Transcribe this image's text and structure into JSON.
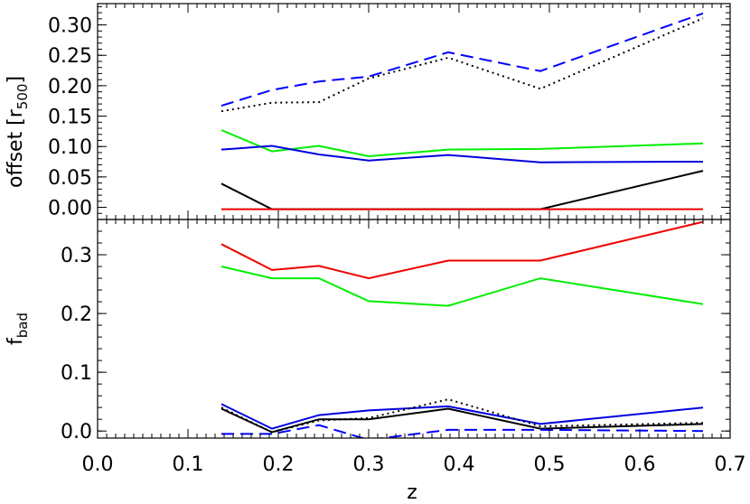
{
  "chart_data": [
    {
      "type": "line",
      "panel": "top",
      "ylabel": "offset [r500]",
      "ylabel_main": "offset [r",
      "ylabel_sub": "500",
      "ylabel_close": "]",
      "xlim": [
        0.0,
        0.7
      ],
      "ylim": [
        -0.02,
        0.335
      ],
      "yticks": [
        0.0,
        0.05,
        0.1,
        0.15,
        0.2,
        0.25,
        0.3
      ],
      "yticklabels": [
        "0.00",
        "0.05",
        "0.10",
        "0.15",
        "0.20",
        "0.25",
        "0.30"
      ],
      "grid": false,
      "series": [
        {
          "color": "#0000ff",
          "style": "dashed",
          "x": [
            0.137,
            0.193,
            0.245,
            0.3,
            0.388,
            0.49,
            0.67
          ],
          "values": [
            0.167,
            0.193,
            0.207,
            0.215,
            0.255,
            0.224,
            0.319
          ]
        },
        {
          "color": "#000000",
          "style": "dotted",
          "x": [
            0.137,
            0.193,
            0.245,
            0.3,
            0.388,
            0.49,
            0.67
          ],
          "values": [
            0.158,
            0.172,
            0.173,
            0.212,
            0.246,
            0.195,
            0.311
          ]
        },
        {
          "color": "#00ee00",
          "style": "solid",
          "x": [
            0.137,
            0.193,
            0.245,
            0.3,
            0.388,
            0.49,
            0.67
          ],
          "values": [
            0.127,
            0.092,
            0.101,
            0.084,
            0.095,
            0.096,
            0.105
          ]
        },
        {
          "color": "#0000dd",
          "style": "solid",
          "x": [
            0.137,
            0.193,
            0.245,
            0.3,
            0.388,
            0.49,
            0.67
          ],
          "values": [
            0.095,
            0.101,
            0.087,
            0.077,
            0.086,
            0.074,
            0.075
          ]
        },
        {
          "color": "#000000",
          "style": "solid",
          "x": [
            0.137,
            0.193,
            0.245,
            0.3,
            0.388,
            0.49,
            0.67
          ],
          "values": [
            0.039,
            -0.003,
            -0.003,
            -0.003,
            -0.003,
            -0.003,
            0.06
          ]
        },
        {
          "color": "#ee0000",
          "style": "solid",
          "x": [
            0.137,
            0.193,
            0.245,
            0.3,
            0.388,
            0.49,
            0.67
          ],
          "values": [
            -0.003,
            -0.003,
            -0.003,
            -0.003,
            -0.003,
            -0.003,
            -0.003
          ]
        }
      ]
    },
    {
      "type": "line",
      "panel": "bottom",
      "ylabel": "fbad",
      "ylabel_main": "f",
      "ylabel_sub": "bad",
      "xlabel": "z",
      "xlim": [
        0.0,
        0.7
      ],
      "ylim": [
        -0.012,
        0.36
      ],
      "xticks": [
        0.0,
        0.1,
        0.2,
        0.3,
        0.4,
        0.5,
        0.6,
        0.7
      ],
      "xticklabels": [
        "0.0",
        "0.1",
        "0.2",
        "0.3",
        "0.4",
        "0.5",
        "0.6",
        "0.7"
      ],
      "yticks": [
        0.0,
        0.1,
        0.2,
        0.3
      ],
      "yticklabels": [
        "0.0",
        "0.1",
        "0.2",
        "0.3"
      ],
      "grid": false,
      "series": [
        {
          "color": "#ee0000",
          "style": "solid",
          "x": [
            0.137,
            0.193,
            0.245,
            0.3,
            0.388,
            0.49,
            0.67
          ],
          "values": [
            0.318,
            0.274,
            0.281,
            0.26,
            0.29,
            0.29,
            0.356
          ]
        },
        {
          "color": "#00ee00",
          "style": "solid",
          "x": [
            0.137,
            0.193,
            0.245,
            0.3,
            0.388,
            0.49,
            0.67
          ],
          "values": [
            0.28,
            0.26,
            0.26,
            0.221,
            0.213,
            0.26,
            0.216
          ]
        },
        {
          "color": "#0000dd",
          "style": "solid",
          "x": [
            0.137,
            0.193,
            0.245,
            0.3,
            0.388,
            0.49,
            0.67
          ],
          "values": [
            0.046,
            0.004,
            0.027,
            0.035,
            0.042,
            0.012,
            0.04
          ]
        },
        {
          "color": "#000000",
          "style": "dotted",
          "x": [
            0.137,
            0.193,
            0.245,
            0.3,
            0.388,
            0.49,
            0.67
          ],
          "values": [
            0.04,
            -0.002,
            0.018,
            0.022,
            0.054,
            0.008,
            0.014
          ]
        },
        {
          "color": "#000000",
          "style": "solid",
          "x": [
            0.137,
            0.193,
            0.245,
            0.3,
            0.388,
            0.49,
            0.67
          ],
          "values": [
            0.038,
            -0.002,
            0.02,
            0.02,
            0.038,
            0.004,
            0.012
          ]
        },
        {
          "color": "#0000ff",
          "style": "dashed",
          "x": [
            0.137,
            0.193,
            0.245,
            0.3,
            0.388,
            0.49,
            0.67
          ],
          "values": [
            -0.005,
            -0.005,
            0.01,
            -0.015,
            0.002,
            0.002,
            0.0
          ]
        }
      ]
    }
  ]
}
